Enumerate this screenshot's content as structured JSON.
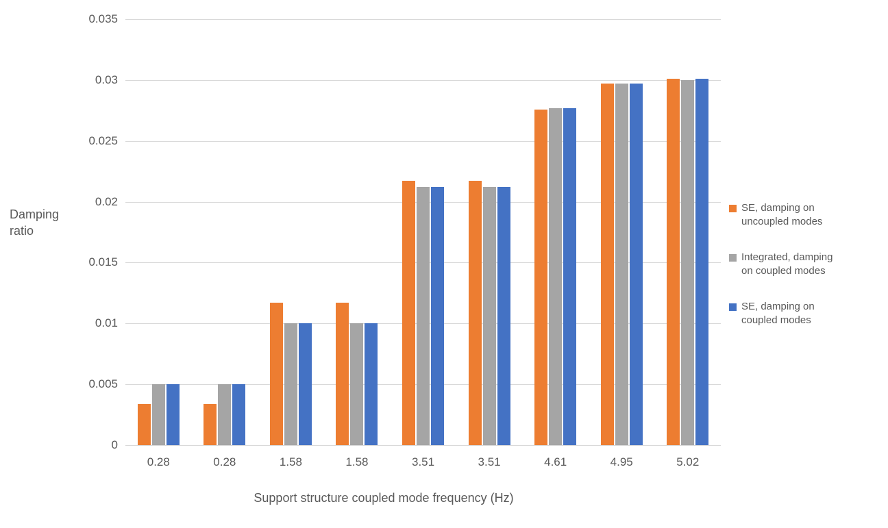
{
  "chart_data": {
    "type": "bar",
    "title": "",
    "xlabel": "Support structure coupled mode frequency (Hz)",
    "ylabel": "Damping ratio",
    "categories": [
      "0.28",
      "0.28",
      "1.58",
      "1.58",
      "3.51",
      "3.51",
      "4.61",
      "4.95",
      "5.02"
    ],
    "series": [
      {
        "name": "SE, damping on uncoupled modes",
        "color": "#ED7D31",
        "values": [
          0.0034,
          0.0034,
          0.0117,
          0.0117,
          0.0217,
          0.0217,
          0.0276,
          0.0297,
          0.0301
        ]
      },
      {
        "name": "Integrated, damping on coupled modes",
        "color": "#A5A5A5",
        "values": [
          0.005,
          0.005,
          0.01,
          0.01,
          0.0212,
          0.0212,
          0.0277,
          0.0297,
          0.03
        ]
      },
      {
        "name": "SE, damping on coupled modes",
        "color": "#4472C4",
        "values": [
          0.005,
          0.005,
          0.01,
          0.01,
          0.0212,
          0.0212,
          0.0277,
          0.0297,
          0.0301
        ]
      }
    ],
    "ylim": [
      0,
      0.035
    ],
    "ytick_values": [
      0.035,
      0.03,
      0.025,
      0.02,
      0.015,
      0.01,
      0.005,
      0
    ],
    "ytick_labels": [
      "0.035",
      "0.03",
      "0.025",
      "0.02",
      "0.015",
      "0.01",
      "0.005",
      "0"
    ],
    "grid": true,
    "legend_position": "right",
    "colors": {
      "gridline": "#D9D9D9",
      "axis_line": "#CFCFCF",
      "text": "#595959"
    }
  }
}
